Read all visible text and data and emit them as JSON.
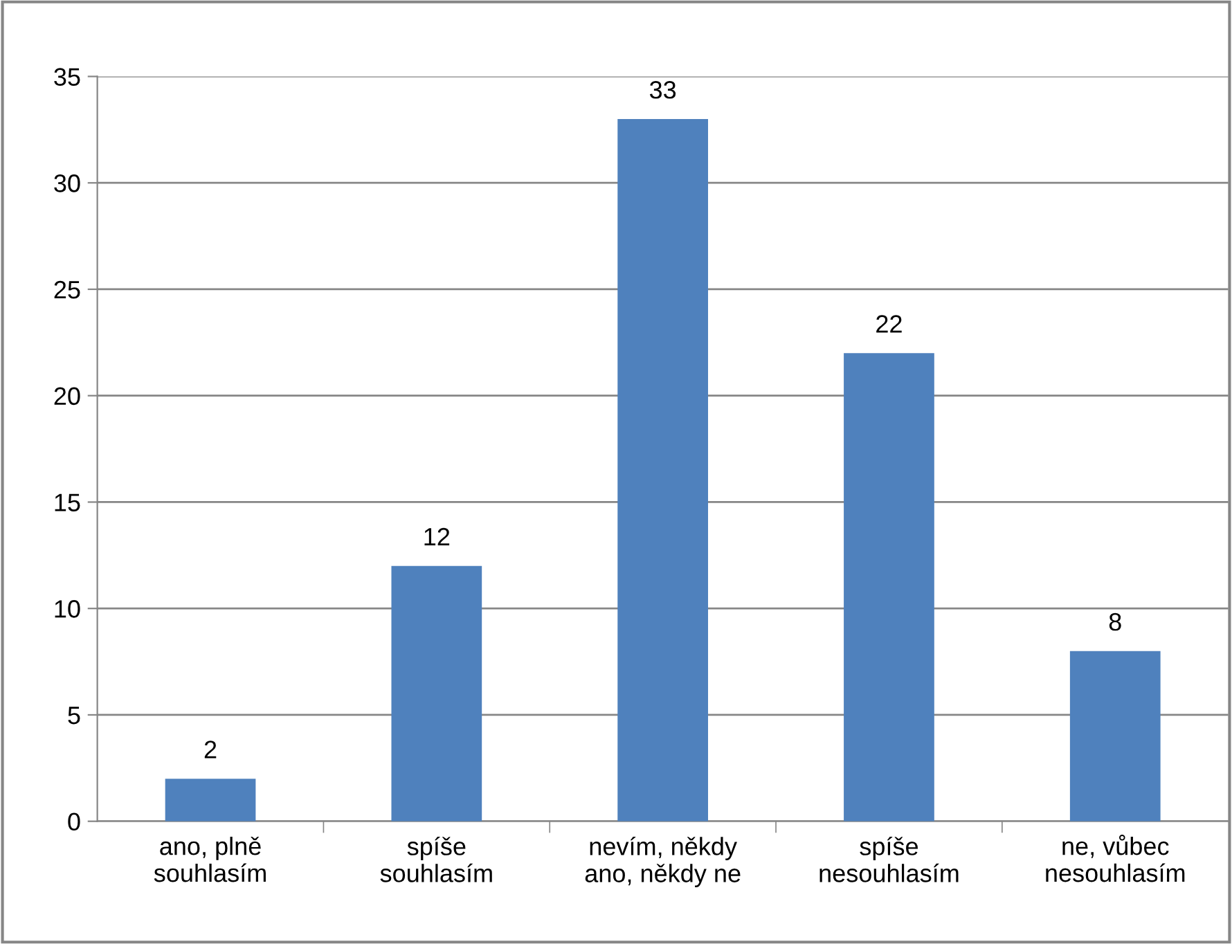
{
  "chart_data": {
    "type": "bar",
    "categories": [
      "ano, plně\nsouhlasím",
      "spíše\nsouhlasím",
      "nevím, někdy\nano, někdy ne",
      "spíše\nnesouhlasím",
      "ne, vůbec\nnesouhlasím"
    ],
    "values": [
      2,
      12,
      33,
      22,
      8
    ],
    "color": "#4f81bd",
    "ylim": [
      0,
      35
    ],
    "yticks": [
      0,
      5,
      10,
      15,
      20,
      25,
      30,
      35
    ],
    "grid": "y",
    "data_labels": true
  }
}
